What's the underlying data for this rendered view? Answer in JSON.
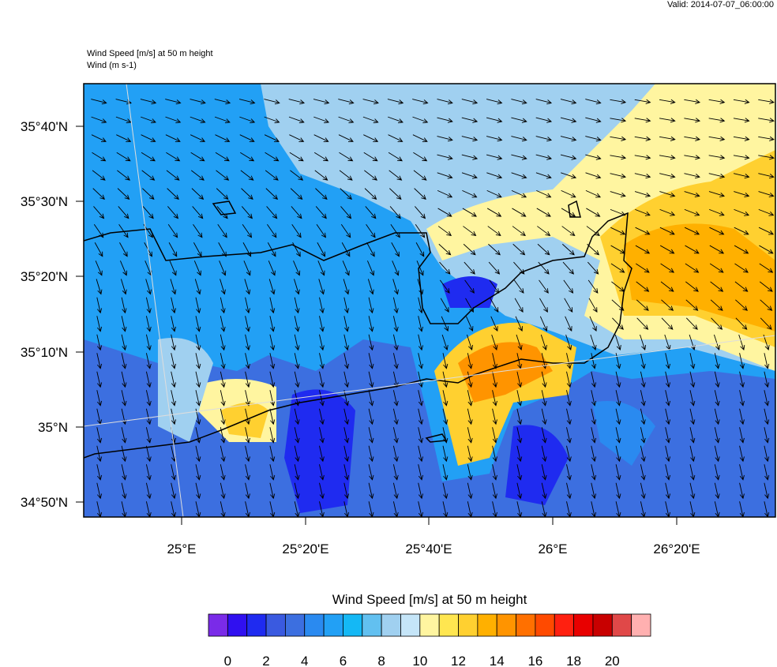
{
  "header": {
    "valid": "Valid: 2014-07-07_06:00:00",
    "title": "Wind Speed [m/s] at 50 m height",
    "subtitle": "Wind   (m s-1)"
  },
  "map": {
    "lat_labels": [
      "35°40'N",
      "35°30'N",
      "35°20'N",
      "35°10'N",
      "35°N",
      "34°50'N"
    ],
    "lon_labels": [
      "25°E",
      "25°20'E",
      "25°40'E",
      "26°E",
      "26°20'E"
    ]
  },
  "colorbar": {
    "title": "Wind Speed [m/s] at 50 m height",
    "colors": [
      "#7a2be8",
      "#3010f0",
      "#1f2bf0",
      "#3a5ae0",
      "#3c6fe0",
      "#2a8af0",
      "#22a0f5",
      "#14b8f5",
      "#62c0f0",
      "#a0d0f0",
      "#c5e5f8",
      "#fff5a0",
      "#ffe650",
      "#ffd030",
      "#ffb000",
      "#ff9400",
      "#ff7000",
      "#ff4a00",
      "#ff2010",
      "#e80000",
      "#c80000",
      "#e04848",
      "#ffb0b0"
    ],
    "labels": [
      "0",
      "2",
      "4",
      "6",
      "8",
      "10",
      "12",
      "14",
      "16",
      "18",
      "20"
    ]
  }
}
